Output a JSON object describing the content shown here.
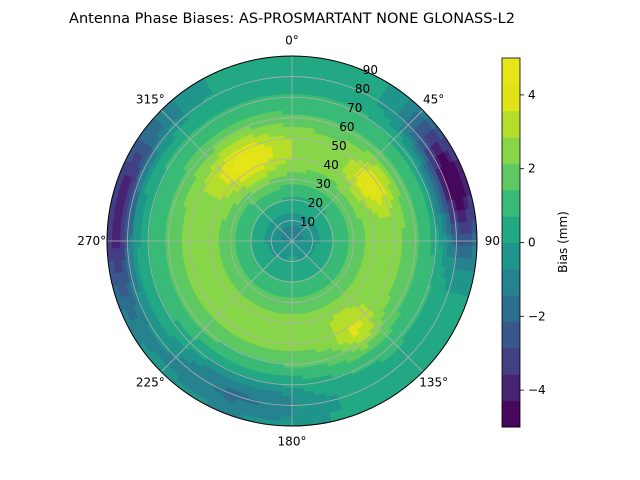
{
  "chart_data": {
    "type": "heatmap",
    "subtype": "polar-filled-contour",
    "title": "Antenna Phase Biases: AS-PROSMARTANT  NONE GLONASS-L2",
    "angular_ticks": [
      {
        "deg": 0,
        "label": "0°"
      },
      {
        "deg": 45,
        "label": "45°"
      },
      {
        "deg": 90,
        "label": "90"
      },
      {
        "deg": 135,
        "label": "135°"
      },
      {
        "deg": 180,
        "label": "180°"
      },
      {
        "deg": 225,
        "label": "225°"
      },
      {
        "deg": 270,
        "label": "270°"
      },
      {
        "deg": 315,
        "label": "315°"
      }
    ],
    "radial_ticks": [
      10,
      20,
      30,
      40,
      50,
      60,
      70,
      80,
      90
    ],
    "radial_range": [
      0,
      90
    ],
    "angular_direction": "clockwise",
    "zero_location": "north",
    "grid": true,
    "colorbar": {
      "label": "Bias (mm)",
      "range": [
        -5,
        5
      ],
      "ticks": [
        -4,
        -2,
        0,
        2,
        4
      ],
      "levels": [
        -5,
        -4.286,
        -3.571,
        -2.857,
        -2.143,
        -1.429,
        -0.714,
        0,
        0.714,
        1.429,
        2.143,
        2.857,
        3.571,
        4.286,
        5
      ],
      "colors": [
        "#46085c",
        "#482374",
        "#423f85",
        "#38588c",
        "#2d6e8e",
        "#26828e",
        "#1f958b",
        "#23a884",
        "#39ba76",
        "#5ec962",
        "#87d549",
        "#b5de2b",
        "#e0e318",
        "#e6e51a"
      ]
    },
    "background_level": 0.4,
    "features": [
      {
        "kind": "ring",
        "radius": 45,
        "width": 20,
        "amplitude": 2.2
      },
      {
        "kind": "blob",
        "azimuth": 330,
        "radius": 45,
        "angular_width": 22,
        "radial_width": 12,
        "amplitude": 2.0
      },
      {
        "kind": "blob",
        "azimuth": 55,
        "radius": 48,
        "angular_width": 15,
        "radial_width": 8,
        "amplitude": 1.8
      },
      {
        "kind": "blob",
        "azimuth": 145,
        "radius": 55,
        "angular_width": 12,
        "radial_width": 10,
        "amplitude": 1.5
      },
      {
        "kind": "blob",
        "azimuth": 70,
        "radius": 84,
        "angular_width": 25,
        "radial_width": 10,
        "amplitude": -5.5
      },
      {
        "kind": "blob",
        "azimuth": 280,
        "radius": 86,
        "angular_width": 35,
        "radial_width": 8,
        "amplitude": -4.5
      },
      {
        "kind": "blob",
        "azimuth": 200,
        "radius": 80,
        "angular_width": 30,
        "radial_width": 12,
        "amplitude": -2.0
      },
      {
        "kind": "blob",
        "azimuth": 0,
        "radius": 0,
        "angular_width": 180,
        "radial_width": 15,
        "amplitude": -1.6
      }
    ]
  }
}
